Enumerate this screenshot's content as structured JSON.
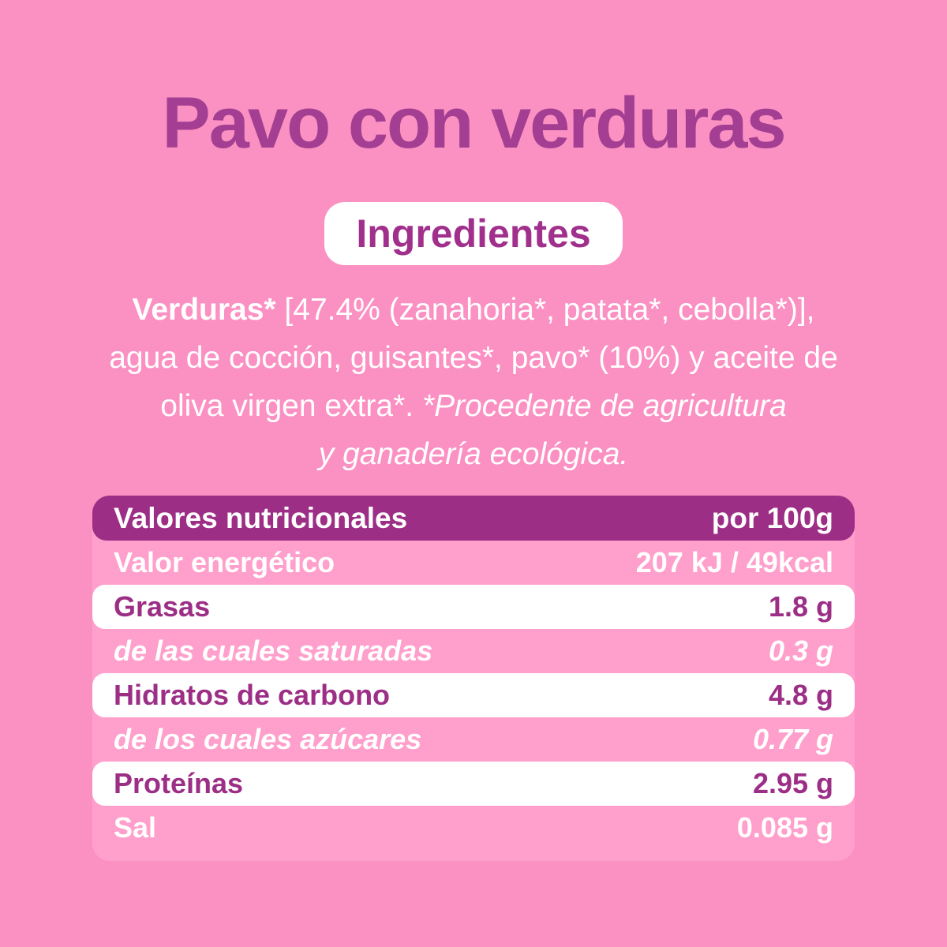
{
  "header": {
    "title": "Pavo con verduras",
    "badge_label": "Ingredientes"
  },
  "ingredients": {
    "lead_bold": "Verduras*",
    "line1_rest": " [47.4% (zanahoria*, patata*, cebolla*)],",
    "line2": "agua de cocción, guisantes*, pavo* (10%) y aceite de",
    "line3_regular": "oliva virgen extra*. ",
    "line3_italic": "*Procedente de agricultura",
    "line4_italic": "y ganadería ecológica.",
    "organic_note_full": "*Procedente de agricultura y ganadería ecológica."
  },
  "nutrition_table": {
    "header_label": "Valores nutricionales",
    "header_unit": "por 100g",
    "rows": [
      {
        "label": "Valor energético",
        "value": "207 kJ / 49kcal"
      },
      {
        "label": "Grasas",
        "value": "1.8 g"
      },
      {
        "label": "de las cuales saturadas",
        "value": "0.3 g"
      },
      {
        "label": "Hidratos de carbono",
        "value": "4.8 g"
      },
      {
        "label": "de los cuales azúcares",
        "value": "0.77 g"
      },
      {
        "label": "Proteínas",
        "value": "2.95 g"
      },
      {
        "label": "Sal",
        "value": "0.085 g"
      }
    ]
  },
  "colors": {
    "page_background": "#FB90C2",
    "table_background": "#FF9FCC",
    "header_bar": "#9C2E86",
    "title_text": "#A33E92",
    "accent_text": "#A0308C",
    "light_text": "#FFFFFF"
  }
}
